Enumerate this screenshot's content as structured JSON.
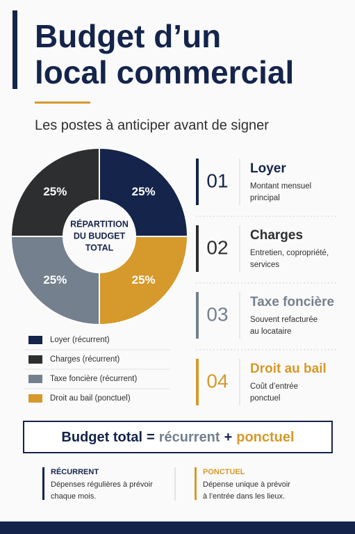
{
  "header": {
    "title_lines": [
      "Budget d’un",
      "local commercial"
    ],
    "subtitle": "Les postes à anticiper avant de signer"
  },
  "chart_data": {
    "type": "pie",
    "donut": true,
    "center_label": [
      "RÉPARTITION",
      "DU BUDGET",
      "TOTAL"
    ],
    "categories": [
      "Loyer (récurrent)",
      "Charges (récurrent)",
      "Taxe foncière (récurrent)",
      "Droit au bail (ponctuel)"
    ],
    "values": [
      25,
      25,
      25,
      25
    ],
    "value_labels": [
      "25%",
      "25%",
      "25%",
      "25%"
    ],
    "colors": [
      "#14244b",
      "#2d2e30",
      "#75808e",
      "#d6992b"
    ]
  },
  "items": [
    {
      "number": "01",
      "title": "Loyer",
      "desc": [
        "Montant mensuel",
        "principal"
      ]
    },
    {
      "number": "02",
      "title": "Charges",
      "desc": [
        "Entretien, copropriété,",
        "services"
      ]
    },
    {
      "number": "03",
      "title": "Taxe foncière",
      "desc": [
        "Souvent refacturée",
        "au locataire"
      ]
    },
    {
      "number": "04",
      "title": "Droit au bail",
      "desc": [
        "Coût d’entrée",
        "ponctuel"
      ]
    }
  ],
  "formula": {
    "lhs": "Budget total",
    "eq": "=",
    "a": "récurrent",
    "plus": "+",
    "b": "ponctuel"
  },
  "notes": [
    {
      "title": "RÉCURRENT",
      "desc": [
        "Dépenses régulières à prévoir",
        "chaque mois."
      ]
    },
    {
      "title": "PONCTUEL",
      "desc": [
        "Dépense unique à prévoir",
        "à l’entrée dans les lieux."
      ]
    }
  ]
}
